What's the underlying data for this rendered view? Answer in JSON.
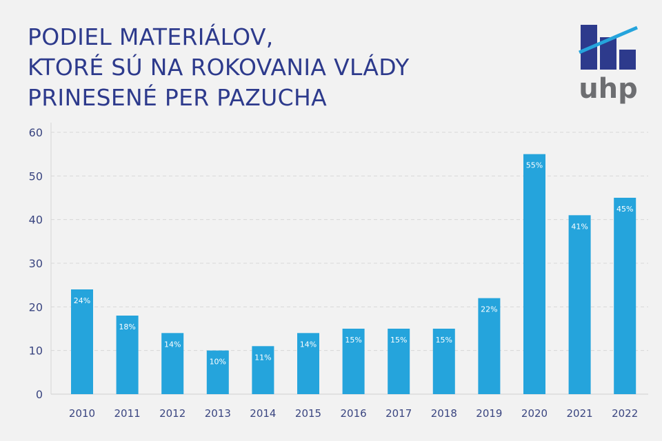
{
  "chart_data": {
    "type": "bar",
    "title_lines": [
      "PODIEL MATERIÁLOV,",
      "KTORÉ SÚ NA ROKOVANIA VLÁDY",
      "PRINESENÉ PER PAZUCHA"
    ],
    "categories": [
      "2010",
      "2011",
      "2012",
      "2013",
      "2014",
      "2015",
      "2016",
      "2017",
      "2018",
      "2019",
      "2020",
      "2021",
      "2022"
    ],
    "values": [
      24,
      18,
      14,
      10,
      11,
      14,
      15,
      15,
      15,
      22,
      55,
      41,
      45
    ],
    "data_labels": [
      "24%",
      "18%",
      "14%",
      "10%",
      "11%",
      "14%",
      "15%",
      "15%",
      "15%",
      "22%",
      "55%",
      "41%",
      "45%"
    ],
    "yticks": [
      0,
      10,
      20,
      30,
      40,
      50,
      60
    ],
    "ylim": [
      0,
      60
    ],
    "grid": true,
    "xlabel": "",
    "ylabel": "",
    "colors": {
      "bar": "#25a4dc",
      "title": "#2d3a8c",
      "axis_text": "#3a4580",
      "background": "#f2f2f2"
    }
  },
  "logo": {
    "text": "uhp",
    "colors": {
      "bars": "#2d3a8c",
      "line": "#25a4dc",
      "text": "#6d6e71"
    }
  }
}
